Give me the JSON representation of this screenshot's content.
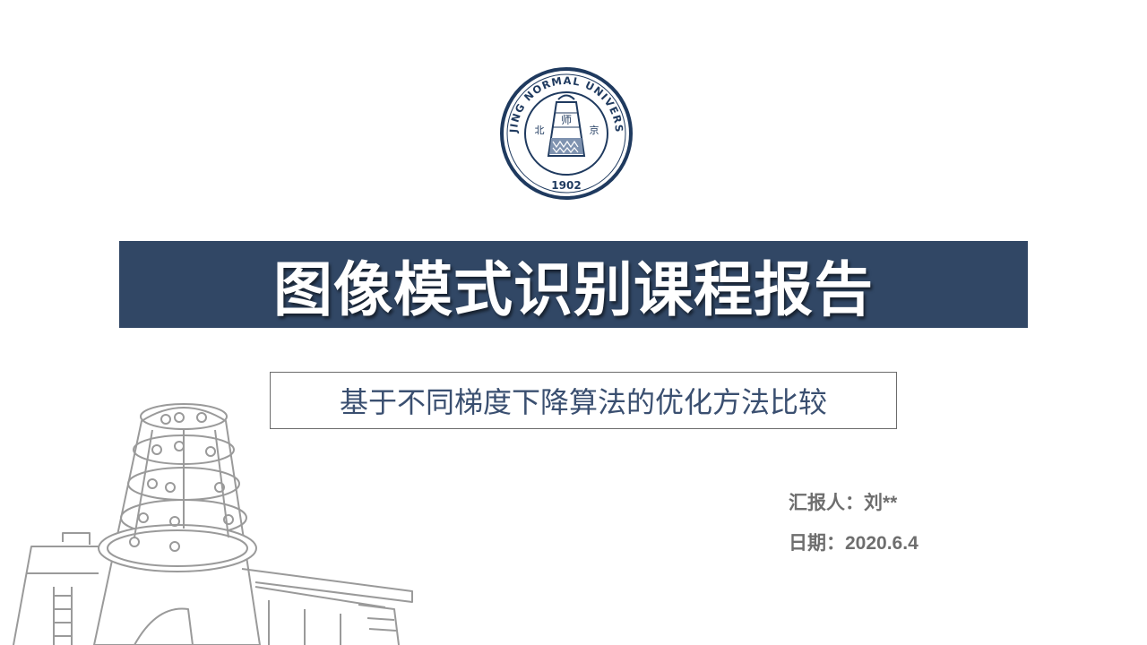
{
  "logo": {
    "ring_text": "BEIJING NORMAL UNIVERSITY",
    "year": "1902",
    "center_left": "北",
    "center_mid": "师",
    "center_right": "京"
  },
  "title": "图像模式识别课程报告",
  "subtitle": "基于不同梯度下降算法的优化方法比较",
  "reporter": {
    "label": "汇报人：",
    "value": "刘**"
  },
  "date": {
    "label": "日期：",
    "value": "2020.6.4"
  },
  "colors": {
    "title_bar": "#314765",
    "subtitle_text": "#3a4f70",
    "info_text": "#6e6e6e",
    "seal": "#1f3a5f"
  }
}
